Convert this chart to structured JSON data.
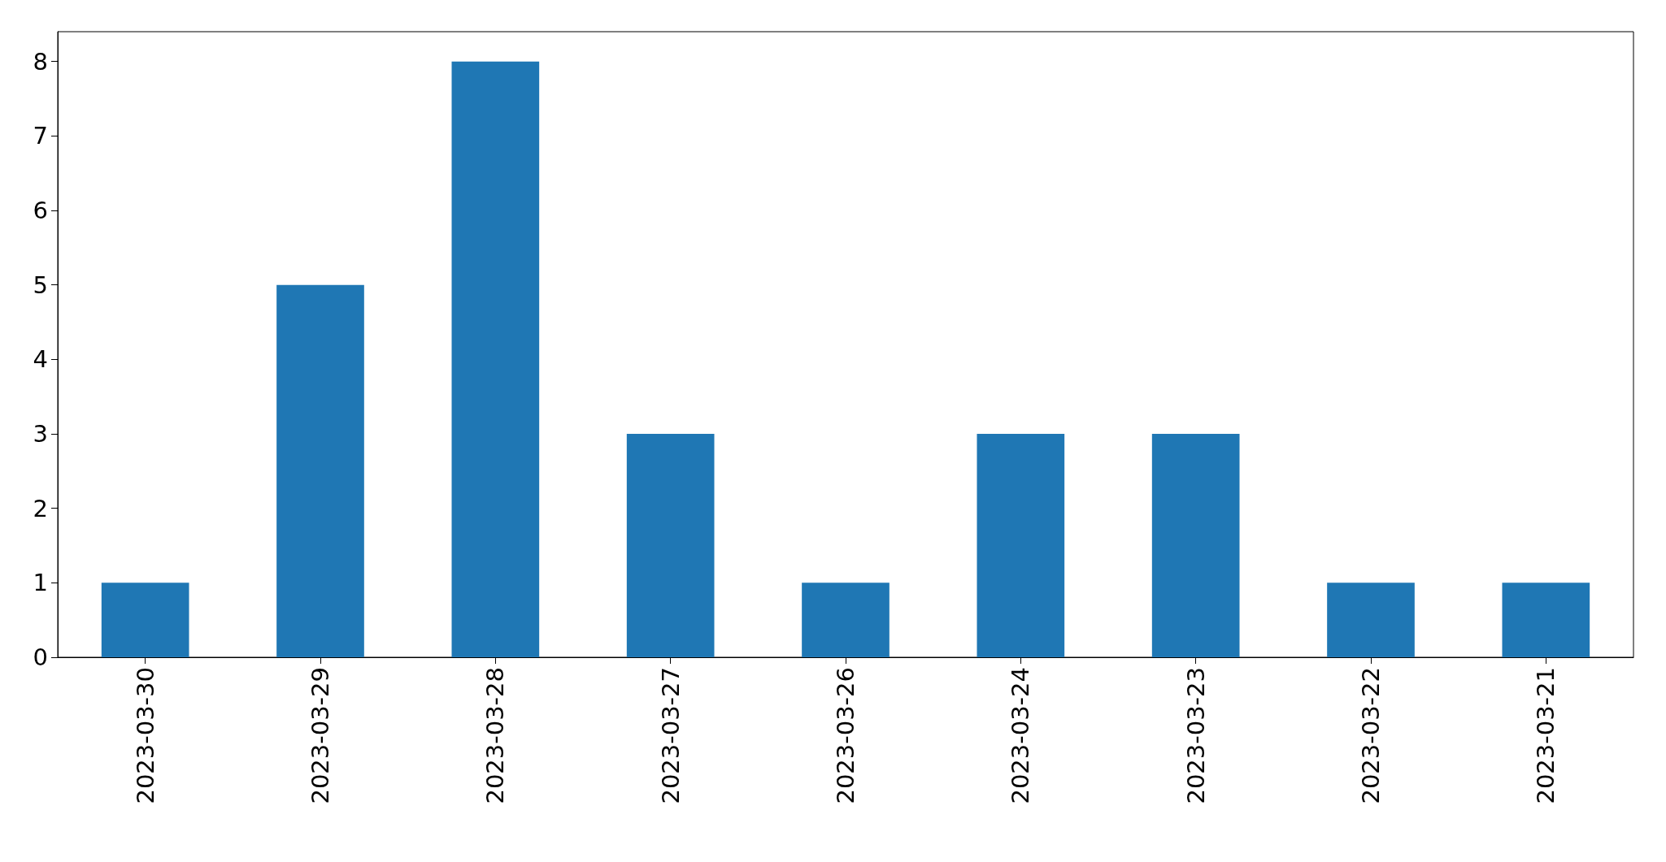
{
  "chart_data": {
    "type": "bar",
    "categories": [
      "2023-03-30",
      "2023-03-29",
      "2023-03-28",
      "2023-03-27",
      "2023-03-26",
      "2023-03-24",
      "2023-03-23",
      "2023-03-22",
      "2023-03-21"
    ],
    "values": [
      1,
      5,
      8,
      3,
      1,
      3,
      3,
      1,
      1
    ],
    "color": "#1f77b4",
    "ylim": [
      0,
      8.4
    ],
    "yticks": [
      0,
      1,
      2,
      3,
      4,
      5,
      6,
      7,
      8
    ]
  }
}
